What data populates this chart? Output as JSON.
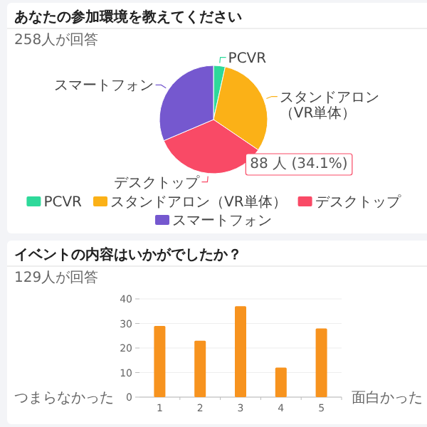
{
  "chart_data": [
    {
      "type": "pie",
      "title": "あなたの参加環境を教えてください",
      "subtitle": "258人が回答",
      "categories": [
        "PCVR",
        "スタンドアロン（VR単体）",
        "デスクトップ",
        "スマートフォン"
      ],
      "values": [
        9,
        80,
        88,
        81
      ],
      "colors": [
        "#2ed99a",
        "#fbb117",
        "#f94a66",
        "#7558cf"
      ],
      "value_labels": [
        null,
        null,
        "88 人 (34.1%)",
        null
      ],
      "legend": "bottom"
    },
    {
      "type": "bar",
      "title": "イベントの内容はいかがでしたか？",
      "subtitle": "129人が回答",
      "categories": [
        "1",
        "2",
        "3",
        "4",
        "5"
      ],
      "values": [
        29,
        23,
        37,
        12,
        28
      ],
      "color": "#f7931e",
      "ylim": [
        0,
        40
      ],
      "yticks": [
        0,
        10,
        20,
        30,
        40
      ],
      "grid": "y",
      "annotations": [
        "つまらなかった",
        "面白かった"
      ]
    }
  ]
}
